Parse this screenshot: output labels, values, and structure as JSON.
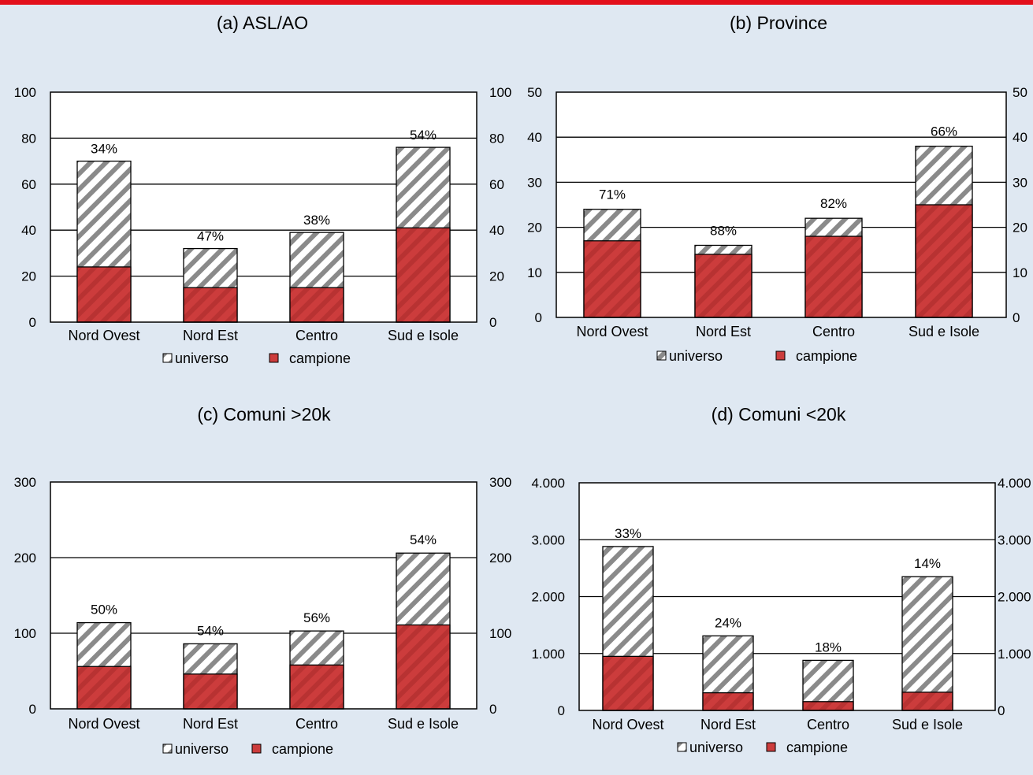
{
  "legend": {
    "universo": "universo",
    "campione": "campione"
  },
  "colors": {
    "background": "#dfe8f2",
    "accent_bar": "#e3101c",
    "campione": "#cc3c3c",
    "universo_stripe": "#8a8a8a"
  },
  "chart_data": [
    {
      "type": "bar",
      "title": "(a) ASL/AO",
      "categories": [
        "Nord Ovest",
        "Nord Est",
        "Centro",
        "Sud e Isole"
      ],
      "series": [
        {
          "name": "universo",
          "values": [
            70,
            32,
            39,
            76
          ]
        },
        {
          "name": "campione",
          "values": [
            24,
            15,
            15,
            41
          ]
        }
      ],
      "annotations": [
        "34%",
        "47%",
        "38%",
        "54%"
      ],
      "ylim": [
        0,
        100
      ],
      "yticks": [
        0,
        20,
        40,
        60,
        80,
        100
      ],
      "ytick_labels": [
        "0",
        "20",
        "40",
        "60",
        "80",
        "100"
      ],
      "grid": true,
      "legend_position": "bottom"
    },
    {
      "type": "bar",
      "title": "(b) Province",
      "categories": [
        "Nord Ovest",
        "Nord Est",
        "Centro",
        "Sud e Isole"
      ],
      "series": [
        {
          "name": "universo",
          "values": [
            24,
            16,
            22,
            38
          ]
        },
        {
          "name": "campione",
          "values": [
            17,
            14,
            18,
            25
          ]
        }
      ],
      "annotations": [
        "71%",
        "88%",
        "82%",
        "66%"
      ],
      "ylim": [
        0,
        50
      ],
      "yticks": [
        0,
        10,
        20,
        30,
        40,
        50
      ],
      "ytick_labels": [
        "0",
        "10",
        "20",
        "30",
        "40",
        "50"
      ],
      "grid": true,
      "legend_position": "bottom"
    },
    {
      "type": "bar",
      "title": "(c) Comuni >20k",
      "categories": [
        "Nord Ovest",
        "Nord Est",
        "Centro",
        "Sud e Isole"
      ],
      "series": [
        {
          "name": "universo",
          "values": [
            114,
            86,
            103,
            206
          ]
        },
        {
          "name": "campione",
          "values": [
            56,
            46,
            58,
            111
          ]
        }
      ],
      "annotations": [
        "50%",
        "54%",
        "56%",
        "54%"
      ],
      "ylim": [
        0,
        300
      ],
      "yticks": [
        0,
        100,
        200,
        300
      ],
      "ytick_labels": [
        "0",
        "100",
        "200",
        "300"
      ],
      "grid": true,
      "legend_position": "bottom"
    },
    {
      "type": "bar",
      "title": "(d) Comuni <20k",
      "categories": [
        "Nord Ovest",
        "Nord Est",
        "Centro",
        "Sud e Isole"
      ],
      "series": [
        {
          "name": "universo",
          "values": [
            2880,
            1310,
            880,
            2350
          ]
        },
        {
          "name": "campione",
          "values": [
            950,
            310,
            155,
            320
          ]
        }
      ],
      "annotations": [
        "33%",
        "24%",
        "18%",
        "14%"
      ],
      "ylim": [
        0,
        4000
      ],
      "yticks": [
        0,
        1000,
        2000,
        3000,
        4000
      ],
      "ytick_labels": [
        "0",
        "1.000",
        "2.000",
        "3.000",
        "4.000"
      ],
      "grid": true,
      "legend_position": "bottom"
    }
  ]
}
